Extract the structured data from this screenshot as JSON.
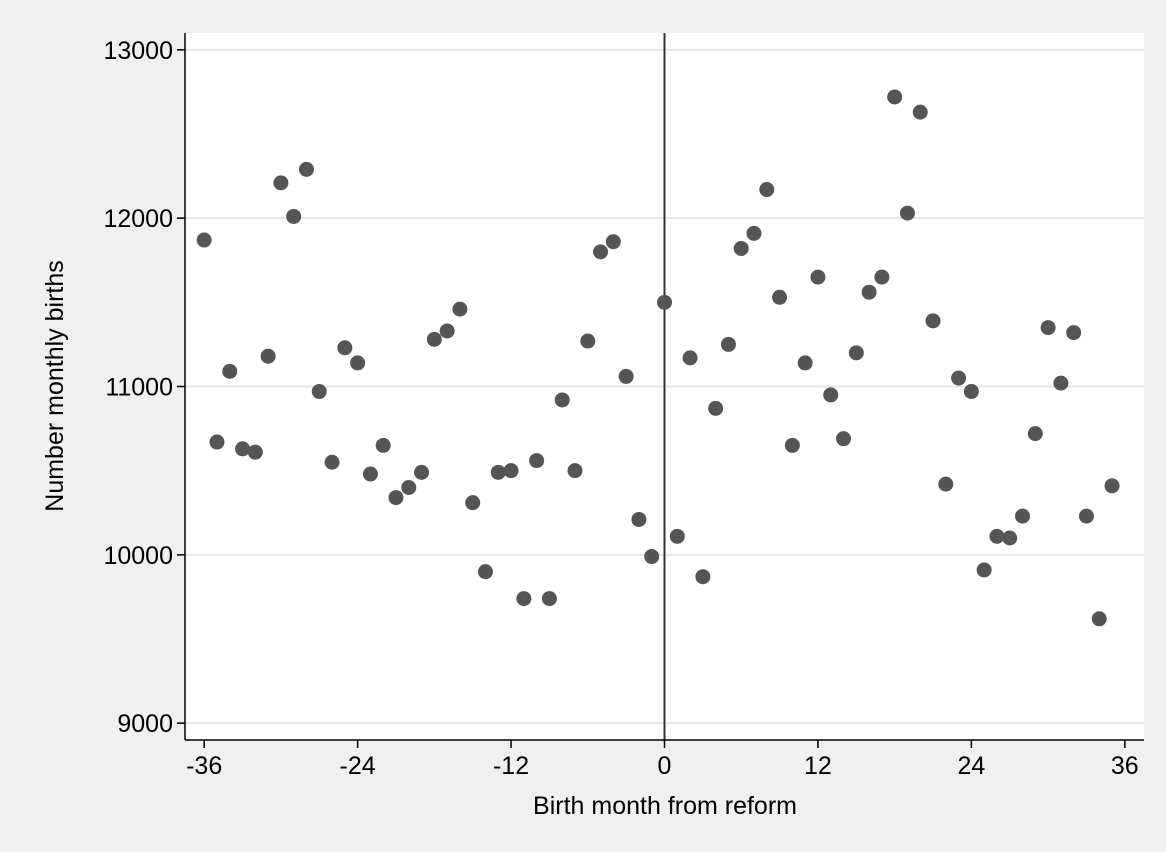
{
  "chart_data": {
    "type": "scatter",
    "title": "",
    "xlabel": "Birth month from reform",
    "ylabel": "Number monthly births",
    "xlim": [
      -37.5,
      37.5
    ],
    "ylim": [
      8900,
      13100
    ],
    "x_ticks": [
      -36,
      -24,
      -12,
      0,
      12,
      24,
      36
    ],
    "y_ticks": [
      9000,
      10000,
      11000,
      12000,
      13000
    ],
    "grid": "horizontal",
    "reference_line_x": 0,
    "colors": {
      "background": "#f0f0f0",
      "plot_area": "#ffffff",
      "marker": "#555555",
      "grid": "#e6e6e6",
      "axis": "#000000"
    },
    "points": [
      {
        "x": -36,
        "y": 11870
      },
      {
        "x": -35,
        "y": 10670
      },
      {
        "x": -34,
        "y": 11090
      },
      {
        "x": -33,
        "y": 10630
      },
      {
        "x": -32,
        "y": 10610
      },
      {
        "x": -31,
        "y": 11180
      },
      {
        "x": -30,
        "y": 12210
      },
      {
        "x": -29,
        "y": 12010
      },
      {
        "x": -28,
        "y": 12290
      },
      {
        "x": -27,
        "y": 10970
      },
      {
        "x": -26,
        "y": 10550
      },
      {
        "x": -25,
        "y": 11230
      },
      {
        "x": -24,
        "y": 11140
      },
      {
        "x": -23,
        "y": 10480
      },
      {
        "x": -22,
        "y": 10650
      },
      {
        "x": -21,
        "y": 10340
      },
      {
        "x": -20,
        "y": 10400
      },
      {
        "x": -19,
        "y": 10490
      },
      {
        "x": -18,
        "y": 11280
      },
      {
        "x": -17,
        "y": 11330
      },
      {
        "x": -16,
        "y": 11460
      },
      {
        "x": -15,
        "y": 10310
      },
      {
        "x": -14,
        "y": 9900
      },
      {
        "x": -13,
        "y": 10490
      },
      {
        "x": -12,
        "y": 10500
      },
      {
        "x": -11,
        "y": 9740
      },
      {
        "x": -10,
        "y": 10560
      },
      {
        "x": -9,
        "y": 9740
      },
      {
        "x": -8,
        "y": 10920
      },
      {
        "x": -7,
        "y": 10500
      },
      {
        "x": -6,
        "y": 11270
      },
      {
        "x": -5,
        "y": 11800
      },
      {
        "x": -4,
        "y": 11860
      },
      {
        "x": -3,
        "y": 11060
      },
      {
        "x": -2,
        "y": 10210
      },
      {
        "x": -1,
        "y": 9990
      },
      {
        "x": 0,
        "y": 11500
      },
      {
        "x": 1,
        "y": 10110
      },
      {
        "x": 2,
        "y": 11170
      },
      {
        "x": 3,
        "y": 9870
      },
      {
        "x": 4,
        "y": 10870
      },
      {
        "x": 5,
        "y": 11250
      },
      {
        "x": 6,
        "y": 11820
      },
      {
        "x": 7,
        "y": 11910
      },
      {
        "x": 8,
        "y": 12170
      },
      {
        "x": 9,
        "y": 11530
      },
      {
        "x": 10,
        "y": 10650
      },
      {
        "x": 11,
        "y": 11140
      },
      {
        "x": 12,
        "y": 11650
      },
      {
        "x": 13,
        "y": 10950
      },
      {
        "x": 14,
        "y": 10690
      },
      {
        "x": 15,
        "y": 11200
      },
      {
        "x": 16,
        "y": 11560
      },
      {
        "x": 17,
        "y": 11650
      },
      {
        "x": 18,
        "y": 12720
      },
      {
        "x": 19,
        "y": 12030
      },
      {
        "x": 20,
        "y": 12630
      },
      {
        "x": 21,
        "y": 11390
      },
      {
        "x": 22,
        "y": 10420
      },
      {
        "x": 23,
        "y": 11050
      },
      {
        "x": 24,
        "y": 10970
      },
      {
        "x": 25,
        "y": 9910
      },
      {
        "x": 26,
        "y": 10110
      },
      {
        "x": 27,
        "y": 10100
      },
      {
        "x": 28,
        "y": 10230
      },
      {
        "x": 29,
        "y": 10720
      },
      {
        "x": 30,
        "y": 11350
      },
      {
        "x": 31,
        "y": 11020
      },
      {
        "x": 32,
        "y": 11320
      },
      {
        "x": 33,
        "y": 10230
      },
      {
        "x": 34,
        "y": 9620
      },
      {
        "x": 35,
        "y": 10410
      }
    ]
  }
}
